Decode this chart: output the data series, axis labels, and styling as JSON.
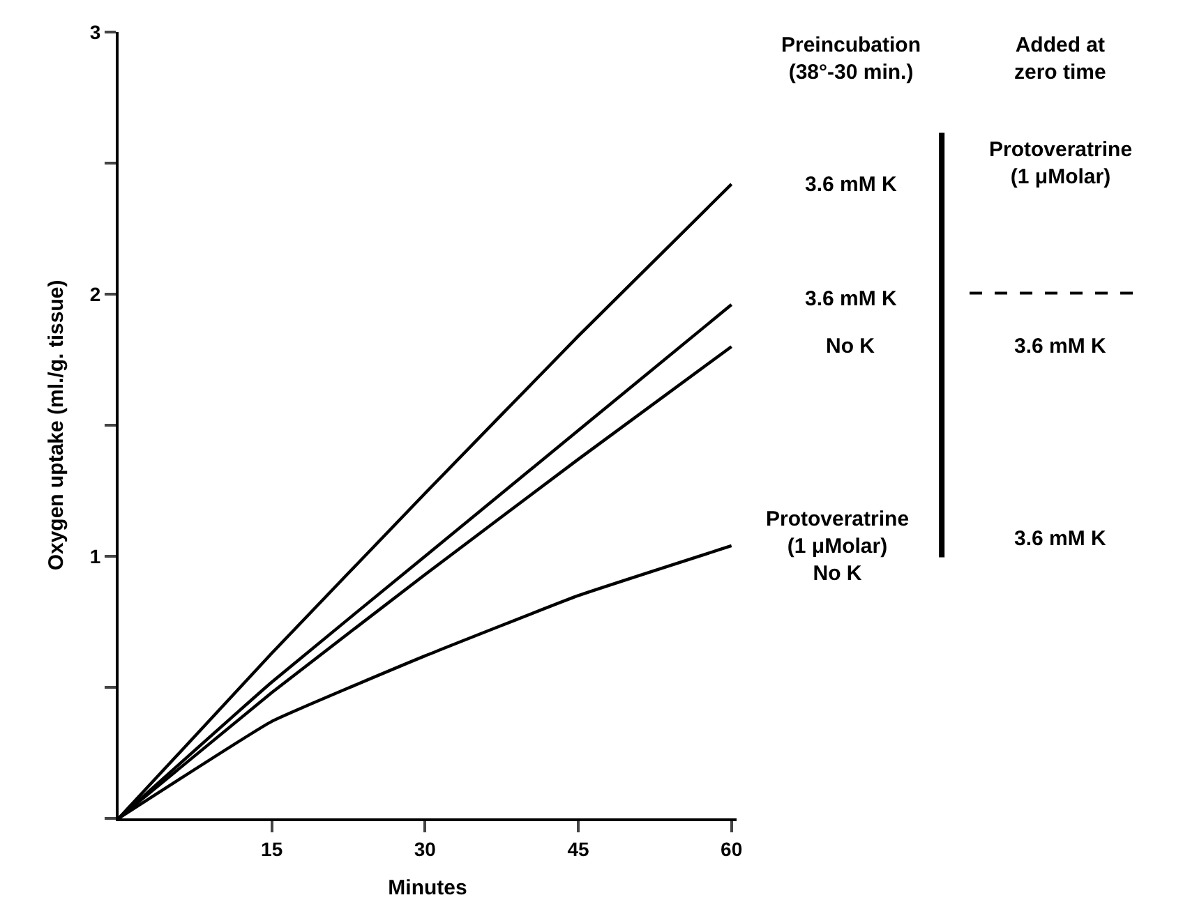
{
  "chart_data": {
    "type": "line",
    "xlabel": "Minutes",
    "ylabel": "Oxygen uptake (ml./g. tissue)",
    "x": [
      0,
      15,
      30,
      45,
      60
    ],
    "series": [
      {
        "color": "#000000",
        "values": [
          0,
          0.63,
          1.24,
          1.84,
          2.42
        ]
      },
      {
        "color": "#000000",
        "values": [
          0,
          0.52,
          1.0,
          1.48,
          1.96
        ]
      },
      {
        "color": "#000000",
        "values": [
          0,
          0.48,
          0.93,
          1.37,
          1.8
        ]
      },
      {
        "color": "#000000",
        "values": [
          0,
          0.37,
          0.62,
          0.85,
          1.04
        ]
      }
    ],
    "xlim": [
      0,
      60.5
    ],
    "xticks": [
      15,
      30,
      45,
      60
    ],
    "ylim": [
      0,
      3
    ],
    "yticks": [
      {
        "value": 0,
        "label": null
      },
      {
        "value": 0.5,
        "label": null
      },
      1,
      {
        "value": 1.5,
        "label": null
      },
      2,
      {
        "value": 2.5,
        "label": null
      },
      3
    ],
    "marker": "none",
    "line_style": "solid",
    "annotations": [
      "Preincubation\n(38°-30 min.)",
      "Added at\nzero time",
      "3.6 mM K",
      "Protoveratrine\n(1 μMolar)",
      "3.6 mM K",
      "No K",
      "3.6 mM K",
      "Protoveratrine\n(1 μMolar)\nNo K",
      "3.6 mM K"
    ]
  }
}
